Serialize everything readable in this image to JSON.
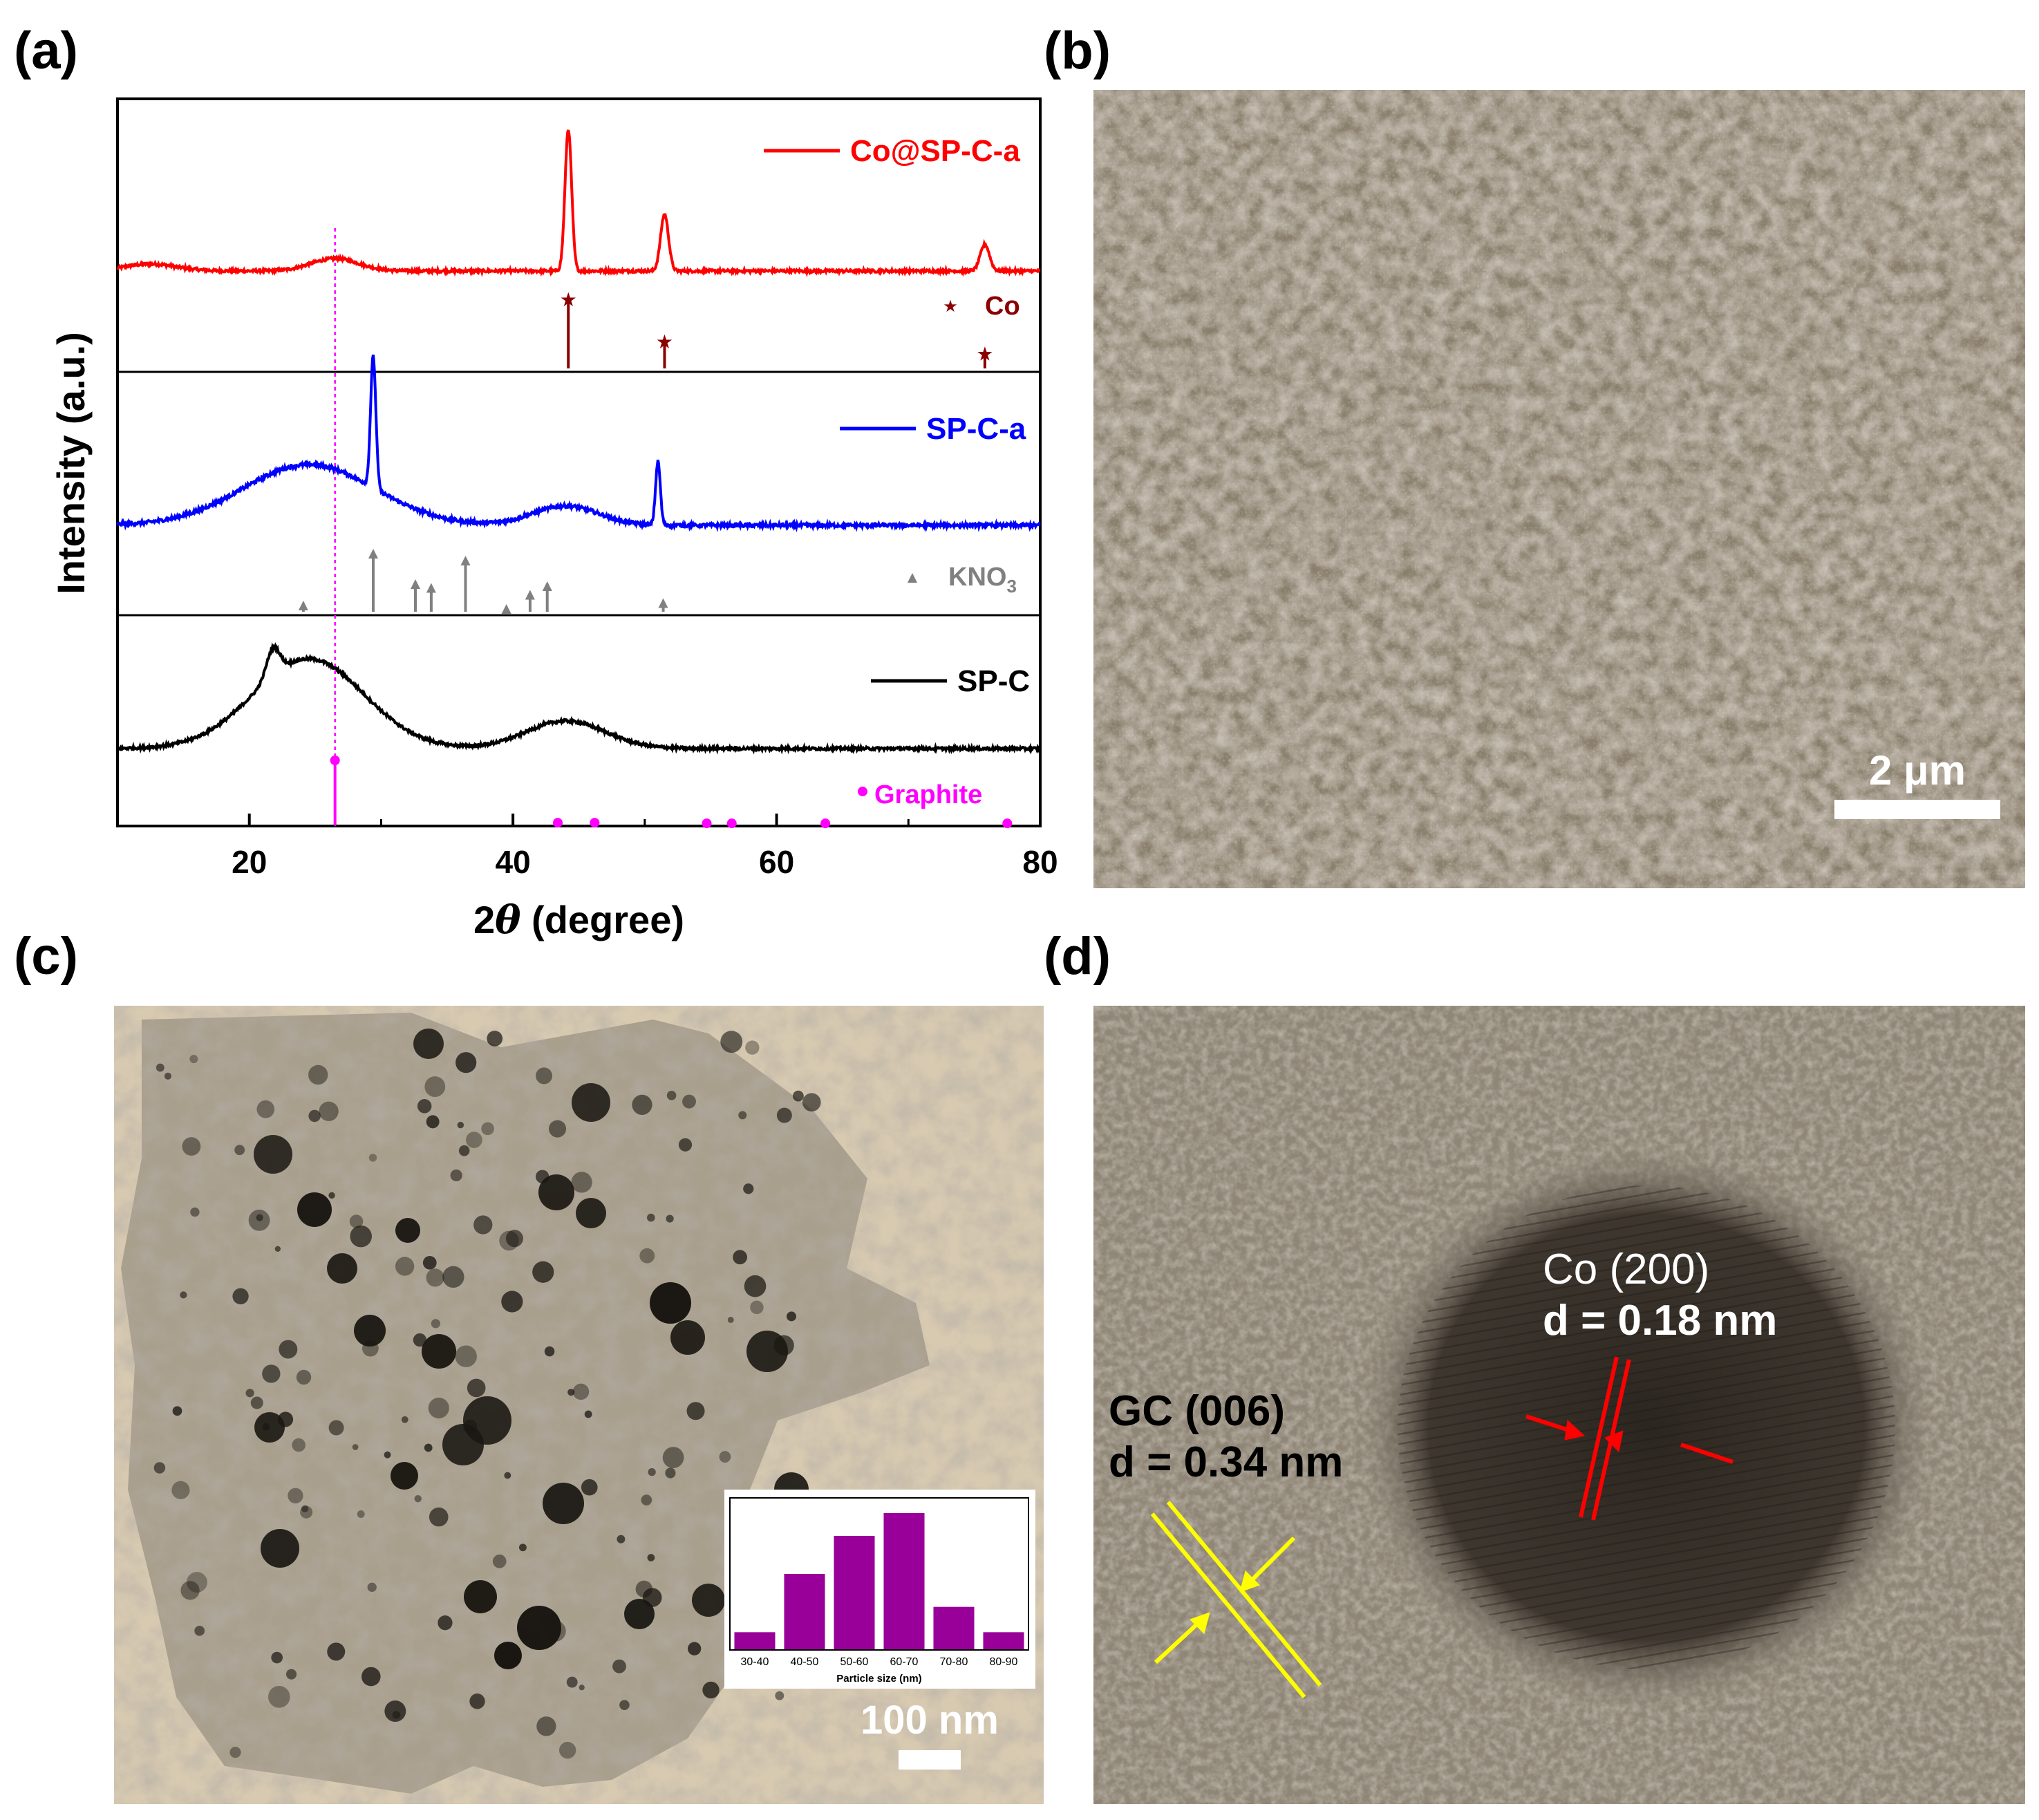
{
  "panels": {
    "a": {
      "label": "(a)",
      "chart_data": {
        "type": "line",
        "xlabel_prefix": "2",
        "xlabel_symbol": "θ",
        "xlabel_suffix": " (degree)",
        "ylabel": "Intensity (a.u.)",
        "xlim": [
          10,
          80
        ],
        "xticks": [
          20,
          40,
          60,
          80
        ],
        "xtick_labels": [
          "20",
          "40",
          "60",
          "80"
        ],
        "grid": false,
        "legend_placement": "inside-right-per-band",
        "series": [
          {
            "name": "Co@SP-C-a",
            "color": "#ff0000",
            "peaks_2theta": [
              26.5,
              44.2,
              51.5,
              75.8
            ]
          },
          {
            "name": "SP-C-a",
            "color": "#0000ff",
            "peaks_2theta": [
              24.5,
              29.4,
              44.0,
              51.0
            ]
          },
          {
            "name": "SP-C",
            "color": "#000000",
            "peaks_2theta": [
              21.8,
              24.5,
              44.0
            ]
          }
        ],
        "references": [
          {
            "name": "Co",
            "marker": "★",
            "color": "#8b0000",
            "positions": [
              44.2,
              51.5,
              75.8
            ],
            "heights": [
              1.0,
              0.38,
              0.2
            ]
          },
          {
            "name": "KNO",
            "subscript": "3",
            "marker": "▲",
            "color": "#808080",
            "positions": [
              24.1,
              29.4,
              32.6,
              33.8,
              36.4,
              39.5,
              41.3,
              42.6,
              51.4
            ],
            "heights": [
              0.12,
              1.0,
              0.48,
              0.42,
              0.88,
              0.06,
              0.3,
              0.45,
              0.16
            ]
          },
          {
            "name": "Graphite",
            "marker": "●",
            "color": "#ff00ff",
            "positions": [
              26.5,
              43.4,
              46.2,
              54.7,
              56.6,
              63.7,
              77.5
            ],
            "heights": [
              1.0,
              0.03,
              0.03,
              0.02,
              0.02,
              0.02,
              0.02
            ]
          }
        ],
        "annotation_vline_2theta": 26.5
      }
    },
    "b": {
      "label": "(b)",
      "scalebar": "2 μm"
    },
    "c": {
      "label": "(c)",
      "scalebar": "100 nm",
      "inset_chart": {
        "type": "bar",
        "categories": [
          "30-40",
          "40-50",
          "50-60",
          "60-70",
          "70-80",
          "80-90"
        ],
        "values": [
          7,
          30,
          45,
          54,
          17,
          7
        ],
        "ylim": [
          0,
          60
        ],
        "xlabel": "Particle size (nm)",
        "color": "#990099"
      }
    },
    "d": {
      "label": "(d)",
      "annot1_line1": "Co (200)",
      "annot1_line2": "d = 0.18 nm",
      "annot2_line1": "GC (006)",
      "annot2_line2": "d = 0.34 nm"
    }
  }
}
